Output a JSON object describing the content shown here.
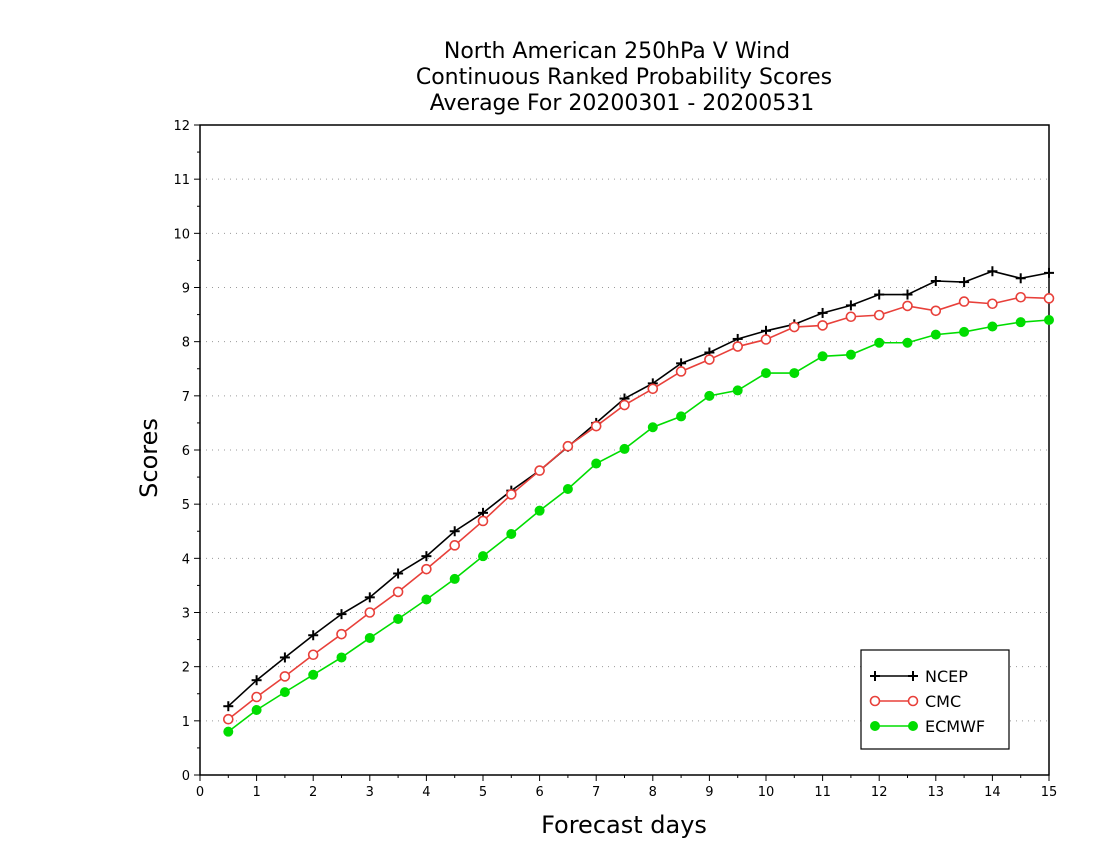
{
  "chart_data": {
    "type": "line",
    "title_lines": [
      "North American 250hPa V Wind",
      "Continuous Ranked Probability Scores",
      "Average For 20200301 - 20200531"
    ],
    "xlabel": "Forecast days",
    "ylabel": "Scores",
    "xlim": [
      0,
      15
    ],
    "ylim": [
      0,
      12
    ],
    "xticks": [
      0,
      1,
      2,
      3,
      4,
      5,
      6,
      7,
      8,
      9,
      10,
      11,
      12,
      13,
      14,
      15
    ],
    "yticks": [
      0,
      1,
      2,
      3,
      4,
      5,
      6,
      7,
      8,
      9,
      10,
      11,
      12
    ],
    "grid": "dotted horizontal",
    "legend_position": "bottom-right",
    "x": [
      0.5,
      1,
      1.5,
      2,
      2.5,
      3,
      3.5,
      4,
      4.5,
      5,
      5.5,
      6,
      6.5,
      7,
      7.5,
      8,
      8.5,
      9,
      9.5,
      10,
      10.5,
      11,
      11.5,
      12,
      12.5,
      13,
      13.5,
      14,
      14.5,
      15
    ],
    "series": [
      {
        "name": "NCEP",
        "color": "#000000",
        "marker": "plus",
        "values": [
          1.27,
          1.75,
          2.17,
          2.58,
          2.97,
          3.28,
          3.72,
          4.04,
          4.5,
          4.84,
          5.25,
          5.62,
          6.06,
          6.5,
          6.95,
          7.23,
          7.6,
          7.8,
          8.05,
          8.2,
          8.32,
          8.53,
          8.67,
          8.87,
          8.87,
          9.12,
          9.1,
          9.3,
          9.17,
          9.27
        ]
      },
      {
        "name": "CMC",
        "color": "#e8403a",
        "marker": "open-circle",
        "values": [
          1.03,
          1.44,
          1.82,
          2.22,
          2.6,
          3.0,
          3.38,
          3.8,
          4.24,
          4.69,
          5.18,
          5.62,
          6.07,
          6.44,
          6.83,
          7.13,
          7.45,
          7.67,
          7.91,
          8.04,
          8.27,
          8.3,
          8.46,
          8.49,
          8.66,
          8.57,
          8.74,
          8.7,
          8.82,
          8.8
        ]
      },
      {
        "name": "ECMWF",
        "color": "#00dd00",
        "marker": "filled-circle",
        "values": [
          0.8,
          1.2,
          1.53,
          1.85,
          2.17,
          2.53,
          2.88,
          3.24,
          3.62,
          4.04,
          4.45,
          4.88,
          5.28,
          5.75,
          6.02,
          6.42,
          6.62,
          7.0,
          7.1,
          7.42,
          7.42,
          7.73,
          7.76,
          7.98,
          7.98,
          8.13,
          8.18,
          8.28,
          8.36,
          8.4
        ]
      }
    ]
  }
}
